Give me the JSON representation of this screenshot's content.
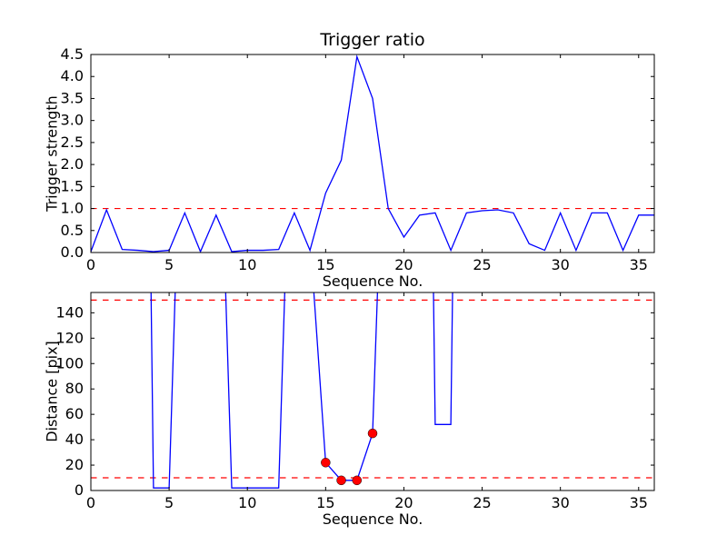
{
  "figure": {
    "background": "#ffffff",
    "axis_color": "#000000",
    "text_color": "#000000"
  },
  "chart_data": [
    {
      "type": "line",
      "title": "Trigger ratio",
      "xlabel": "Sequence No.",
      "ylabel": "Trigger strength",
      "xlim": [
        0,
        36
      ],
      "ylim": [
        0,
        4.5
      ],
      "xticks": [
        0,
        5,
        10,
        15,
        20,
        25,
        30,
        35
      ],
      "yticks": [
        0,
        0.5,
        1,
        1.5,
        2,
        2.5,
        3,
        3.5,
        4,
        4.5
      ],
      "ytick_decimals": 1,
      "grid": false,
      "legend": false,
      "line_color": "#0000ff",
      "hlines": [
        {
          "y": 1.0,
          "color": "#ff0000",
          "style": "dashed"
        }
      ],
      "x": [
        0,
        1,
        2,
        3,
        4,
        5,
        6,
        7,
        8,
        9,
        10,
        11,
        12,
        13,
        14,
        15,
        16,
        17,
        18,
        19,
        20,
        21,
        22,
        23,
        24,
        25,
        26,
        27,
        28,
        29,
        30,
        31,
        32,
        33,
        34,
        35,
        36
      ],
      "y": [
        0.02,
        0.97,
        0.07,
        0.05,
        0.02,
        0.05,
        0.9,
        0.02,
        0.85,
        0.02,
        0.05,
        0.05,
        0.07,
        0.9,
        0.05,
        1.35,
        2.1,
        4.45,
        3.5,
        1.0,
        0.35,
        0.85,
        0.9,
        0.05,
        0.9,
        0.95,
        0.97,
        0.9,
        0.2,
        0.05,
        0.9,
        0.05,
        0.9,
        0.9,
        0.05,
        0.85,
        0.85
      ]
    },
    {
      "type": "line",
      "title": "",
      "xlabel": "Sequence No.",
      "ylabel": "Distance [pix]",
      "xlim": [
        0,
        36
      ],
      "ylim": [
        0,
        156
      ],
      "xticks": [
        0,
        5,
        10,
        15,
        20,
        25,
        30,
        35
      ],
      "yticks": [
        0,
        20,
        40,
        60,
        80,
        100,
        120,
        140
      ],
      "ytick_decimals": 0,
      "grid": false,
      "legend": false,
      "line_color": "#0000ff",
      "hlines": [
        {
          "y": 150,
          "color": "#ff0000",
          "style": "dashed"
        },
        {
          "y": 10,
          "color": "#ff0000",
          "style": "dashed"
        }
      ],
      "x": [
        0,
        1,
        2,
        3,
        4,
        5,
        6,
        7,
        8,
        9,
        10,
        11,
        12,
        13,
        14,
        15,
        16,
        17,
        18,
        19,
        20,
        21,
        22,
        23,
        24,
        25,
        26,
        27,
        28,
        29,
        30,
        31,
        32,
        33,
        34,
        35,
        36
      ],
      "y": [
        1000,
        1000,
        1000,
        1000,
        2,
        2,
        400,
        1000,
        400,
        2,
        2,
        2,
        2,
        400,
        200,
        22,
        8,
        8,
        45,
        400,
        1000,
        1000,
        52,
        52,
        1000,
        1000,
        1000,
        1000,
        1000,
        1000,
        1000,
        1000,
        1000,
        1000,
        1000,
        1000,
        1000
      ],
      "markers": {
        "shape": "circle",
        "color": "#ff0000",
        "x": [
          15,
          16,
          17,
          18
        ],
        "y": [
          22,
          8,
          8,
          45
        ]
      }
    }
  ]
}
